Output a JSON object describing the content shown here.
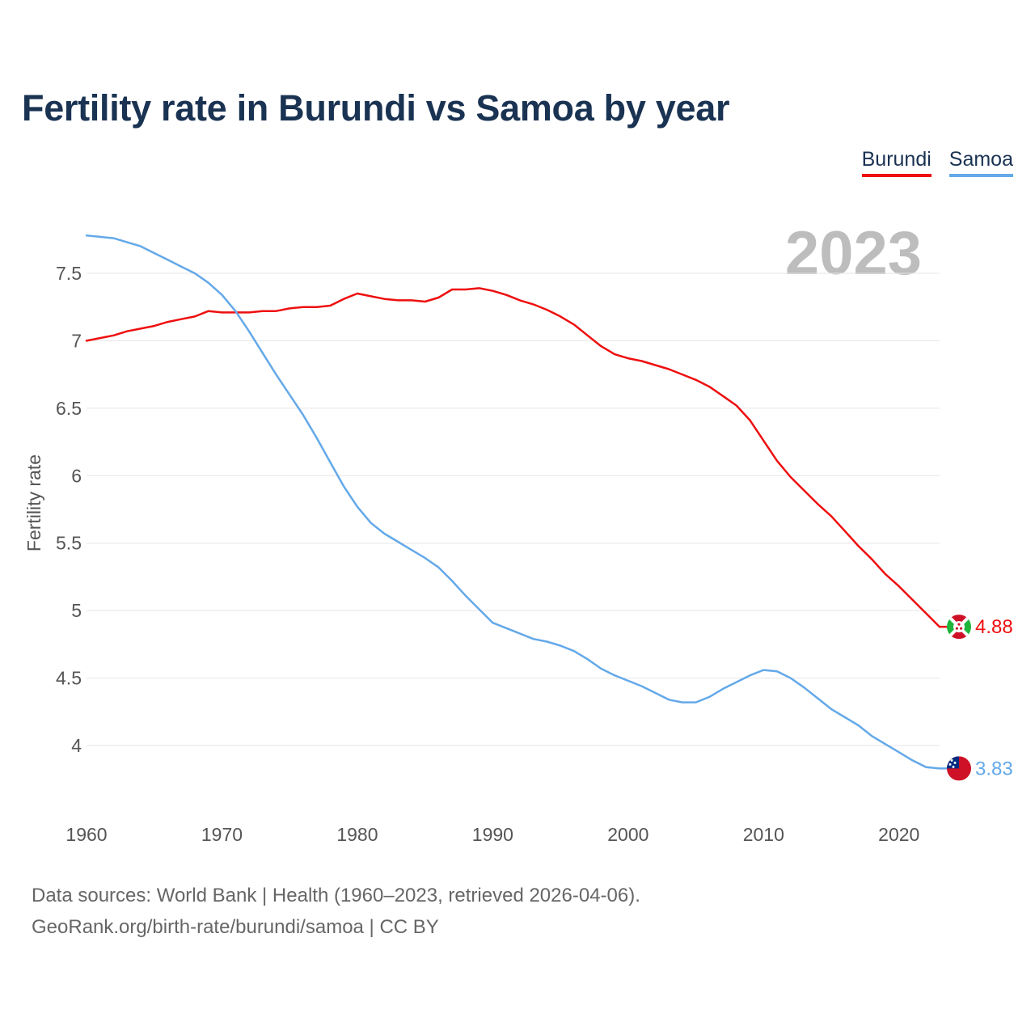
{
  "title": "Fertility rate in Burundi vs Samoa by year",
  "year_label": "2023",
  "legend": [
    {
      "label": "Burundi",
      "color": "#ee0f0f"
    },
    {
      "label": "Samoa",
      "color": "#64a9e9"
    }
  ],
  "source": {
    "line1": "Data sources: World Bank | Health (1960–2023, retrieved 2026-04-06).",
    "line2": "GeoRank.org/birth-rate/burundi/samoa | CC BY"
  },
  "chart_data": {
    "type": "line",
    "title": "Fertility rate in Burundi vs Samoa by year",
    "xlabel": "",
    "ylabel": "Fertility rate",
    "xlim": [
      1960,
      2023
    ],
    "ylim": [
      3.7,
      7.8
    ],
    "x_ticks": [
      1960,
      1970,
      1980,
      1990,
      2000,
      2010,
      2020
    ],
    "y_ticks": [
      4,
      4.5,
      5,
      5.5,
      6,
      6.5,
      7,
      7.5
    ],
    "y_tick_labels": [
      "4",
      "4.5",
      "5",
      "5.5",
      "6",
      "6.5",
      "7",
      "7.5"
    ],
    "grid": true,
    "x": [
      1960,
      1961,
      1962,
      1963,
      1964,
      1965,
      1966,
      1967,
      1968,
      1969,
      1970,
      1971,
      1972,
      1973,
      1974,
      1975,
      1976,
      1977,
      1978,
      1979,
      1980,
      1981,
      1982,
      1983,
      1984,
      1985,
      1986,
      1987,
      1988,
      1989,
      1990,
      1991,
      1992,
      1993,
      1994,
      1995,
      1996,
      1997,
      1998,
      1999,
      2000,
      2001,
      2002,
      2003,
      2004,
      2005,
      2006,
      2007,
      2008,
      2009,
      2010,
      2011,
      2012,
      2013,
      2014,
      2015,
      2016,
      2017,
      2018,
      2019,
      2020,
      2021,
      2022,
      2023
    ],
    "series": [
      {
        "name": "Burundi",
        "color": "#ee0f0f",
        "end_label": "4.88",
        "values": [
          7.0,
          7.02,
          7.04,
          7.07,
          7.09,
          7.11,
          7.14,
          7.16,
          7.18,
          7.22,
          7.21,
          7.21,
          7.21,
          7.22,
          7.22,
          7.24,
          7.25,
          7.25,
          7.26,
          7.31,
          7.35,
          7.33,
          7.31,
          7.3,
          7.3,
          7.29,
          7.32,
          7.38,
          7.38,
          7.39,
          7.37,
          7.34,
          7.3,
          7.27,
          7.23,
          7.18,
          7.12,
          7.04,
          6.96,
          6.9,
          6.87,
          6.85,
          6.82,
          6.79,
          6.75,
          6.71,
          6.66,
          6.59,
          6.52,
          6.41,
          6.26,
          6.11,
          5.99,
          5.89,
          5.79,
          5.7,
          5.59,
          5.48,
          5.38,
          5.27,
          5.18,
          5.08,
          4.98,
          4.88
        ]
      },
      {
        "name": "Samoa",
        "color": "#64a9e9",
        "end_label": "3.83",
        "values": [
          7.78,
          7.77,
          7.76,
          7.73,
          7.7,
          7.65,
          7.6,
          7.55,
          7.5,
          7.43,
          7.34,
          7.22,
          7.07,
          6.91,
          6.75,
          6.6,
          6.45,
          6.28,
          6.1,
          5.92,
          5.77,
          5.65,
          5.57,
          5.51,
          5.45,
          5.39,
          5.32,
          5.22,
          5.11,
          5.01,
          4.91,
          4.87,
          4.83,
          4.79,
          4.77,
          4.74,
          4.7,
          4.64,
          4.57,
          4.52,
          4.48,
          4.44,
          4.39,
          4.34,
          4.32,
          4.32,
          4.36,
          4.42,
          4.47,
          4.52,
          4.56,
          4.55,
          4.5,
          4.43,
          4.35,
          4.27,
          4.21,
          4.15,
          4.07,
          4.01,
          3.95,
          3.89,
          3.84,
          3.83
        ]
      }
    ]
  }
}
